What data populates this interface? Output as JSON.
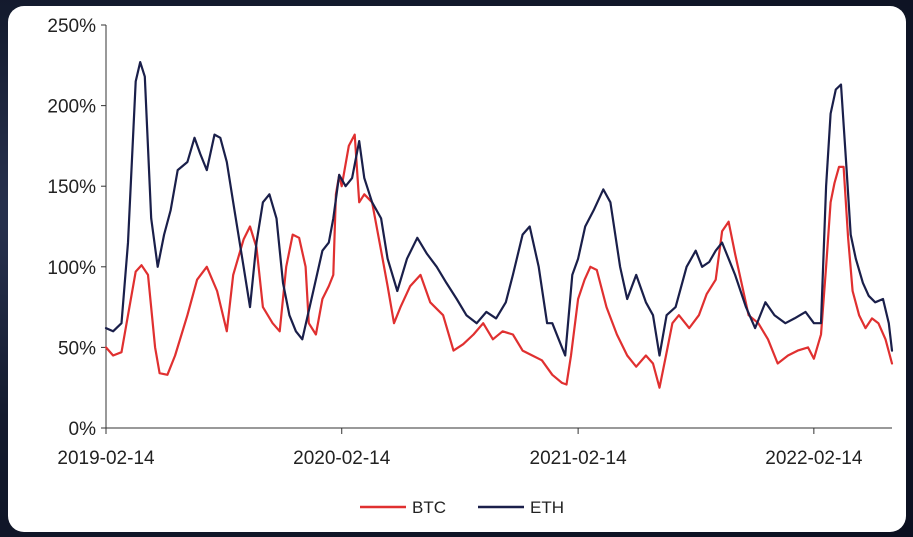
{
  "chart_data": {
    "type": "line",
    "title": "",
    "xlabel": "",
    "ylabel": "",
    "ylim": [
      0,
      250
    ],
    "y_ticks": [
      0,
      50,
      100,
      150,
      200,
      250
    ],
    "y_tick_labels": [
      "0%",
      "50%",
      "100%",
      "150%",
      "200%",
      "250%"
    ],
    "x_range": [
      "2019-02-14",
      "2022-06-15"
    ],
    "x_ticks": [
      "2019-02-14",
      "2020-02-14",
      "2021-02-14",
      "2022-02-14"
    ],
    "grid": false,
    "legend_position": "bottom",
    "series": [
      {
        "name": "BTC",
        "color": "#e03030",
        "points": [
          [
            "2019-02-14",
            50
          ],
          [
            "2019-02-25",
            45
          ],
          [
            "2019-03-10",
            47
          ],
          [
            "2019-03-20",
            70
          ],
          [
            "2019-04-01",
            97
          ],
          [
            "2019-04-10",
            101
          ],
          [
            "2019-04-20",
            95
          ],
          [
            "2019-05-01",
            50
          ],
          [
            "2019-05-08",
            34
          ],
          [
            "2019-05-20",
            33
          ],
          [
            "2019-06-01",
            45
          ],
          [
            "2019-06-20",
            70
          ],
          [
            "2019-07-05",
            92
          ],
          [
            "2019-07-20",
            100
          ],
          [
            "2019-08-05",
            85
          ],
          [
            "2019-08-20",
            60
          ],
          [
            "2019-08-30",
            95
          ],
          [
            "2019-09-15",
            117
          ],
          [
            "2019-09-25",
            125
          ],
          [
            "2019-10-05",
            112
          ],
          [
            "2019-10-15",
            75
          ],
          [
            "2019-10-30",
            65
          ],
          [
            "2019-11-10",
            60
          ],
          [
            "2019-11-20",
            100
          ],
          [
            "2019-11-30",
            120
          ],
          [
            "2019-12-10",
            118
          ],
          [
            "2019-12-20",
            100
          ],
          [
            "2019-12-25",
            65
          ],
          [
            "2020-01-05",
            58
          ],
          [
            "2020-01-15",
            80
          ],
          [
            "2020-01-25",
            88
          ],
          [
            "2020-02-01",
            95
          ],
          [
            "2020-02-05",
            145
          ],
          [
            "2020-02-10",
            157
          ],
          [
            "2020-02-14",
            150
          ],
          [
            "2020-02-25",
            175
          ],
          [
            "2020-03-05",
            182
          ],
          [
            "2020-03-12",
            140
          ],
          [
            "2020-03-20",
            145
          ],
          [
            "2020-04-01",
            140
          ],
          [
            "2020-04-15",
            110
          ],
          [
            "2020-04-25",
            88
          ],
          [
            "2020-05-05",
            65
          ],
          [
            "2020-05-15",
            75
          ],
          [
            "2020-05-30",
            88
          ],
          [
            "2020-06-15",
            95
          ],
          [
            "2020-06-30",
            78
          ],
          [
            "2020-07-20",
            70
          ],
          [
            "2020-08-05",
            48
          ],
          [
            "2020-08-20",
            52
          ],
          [
            "2020-09-05",
            58
          ],
          [
            "2020-09-20",
            65
          ],
          [
            "2020-10-05",
            55
          ],
          [
            "2020-10-20",
            60
          ],
          [
            "2020-11-05",
            58
          ],
          [
            "2020-11-20",
            48
          ],
          [
            "2020-12-05",
            45
          ],
          [
            "2020-12-20",
            42
          ],
          [
            "2021-01-05",
            33
          ],
          [
            "2021-01-20",
            28
          ],
          [
            "2021-01-27",
            27
          ],
          [
            "2021-02-03",
            45
          ],
          [
            "2021-02-14",
            80
          ],
          [
            "2021-02-24",
            92
          ],
          [
            "2021-03-05",
            100
          ],
          [
            "2021-03-15",
            98
          ],
          [
            "2021-03-30",
            75
          ],
          [
            "2021-04-15",
            58
          ],
          [
            "2021-05-01",
            45
          ],
          [
            "2021-05-15",
            38
          ],
          [
            "2021-05-30",
            45
          ],
          [
            "2021-06-10",
            40
          ],
          [
            "2021-06-20",
            25
          ],
          [
            "2021-06-30",
            45
          ],
          [
            "2021-07-10",
            65
          ],
          [
            "2021-07-20",
            70
          ],
          [
            "2021-08-05",
            62
          ],
          [
            "2021-08-20",
            70
          ],
          [
            "2021-09-01",
            83
          ],
          [
            "2021-09-15",
            92
          ],
          [
            "2021-09-25",
            122
          ],
          [
            "2021-10-05",
            128
          ],
          [
            "2021-10-15",
            108
          ],
          [
            "2021-10-25",
            90
          ],
          [
            "2021-11-05",
            70
          ],
          [
            "2021-11-20",
            65
          ],
          [
            "2021-12-05",
            55
          ],
          [
            "2021-12-20",
            40
          ],
          [
            "2022-01-05",
            45
          ],
          [
            "2022-01-20",
            48
          ],
          [
            "2022-02-05",
            50
          ],
          [
            "2022-02-14",
            43
          ],
          [
            "2022-02-25",
            58
          ],
          [
            "2022-03-05",
            100
          ],
          [
            "2022-03-12",
            140
          ],
          [
            "2022-03-18",
            152
          ],
          [
            "2022-03-25",
            162
          ],
          [
            "2022-04-01",
            162
          ],
          [
            "2022-04-08",
            118
          ],
          [
            "2022-04-15",
            85
          ],
          [
            "2022-04-25",
            70
          ],
          [
            "2022-05-05",
            62
          ],
          [
            "2022-05-15",
            68
          ],
          [
            "2022-05-25",
            65
          ],
          [
            "2022-06-05",
            55
          ],
          [
            "2022-06-15",
            40
          ]
        ]
      },
      {
        "name": "ETH",
        "color": "#1a1f4a",
        "points": [
          [
            "2019-02-14",
            62
          ],
          [
            "2019-02-25",
            60
          ],
          [
            "2019-03-10",
            65
          ],
          [
            "2019-03-20",
            115
          ],
          [
            "2019-04-01",
            215
          ],
          [
            "2019-04-08",
            227
          ],
          [
            "2019-04-15",
            218
          ],
          [
            "2019-04-25",
            130
          ],
          [
            "2019-05-05",
            100
          ],
          [
            "2019-05-15",
            120
          ],
          [
            "2019-05-25",
            135
          ],
          [
            "2019-06-05",
            160
          ],
          [
            "2019-06-20",
            165
          ],
          [
            "2019-07-01",
            180
          ],
          [
            "2019-07-10",
            170
          ],
          [
            "2019-07-20",
            160
          ],
          [
            "2019-08-01",
            182
          ],
          [
            "2019-08-10",
            180
          ],
          [
            "2019-08-20",
            165
          ],
          [
            "2019-09-01",
            135
          ],
          [
            "2019-09-15",
            100
          ],
          [
            "2019-09-25",
            75
          ],
          [
            "2019-10-05",
            115
          ],
          [
            "2019-10-15",
            140
          ],
          [
            "2019-10-25",
            145
          ],
          [
            "2019-11-05",
            130
          ],
          [
            "2019-11-15",
            90
          ],
          [
            "2019-11-25",
            70
          ],
          [
            "2019-12-05",
            60
          ],
          [
            "2019-12-15",
            55
          ],
          [
            "2020-01-01",
            85
          ],
          [
            "2020-01-15",
            110
          ],
          [
            "2020-01-25",
            115
          ],
          [
            "2020-02-01",
            130
          ],
          [
            "2020-02-10",
            157
          ],
          [
            "2020-02-20",
            150
          ],
          [
            "2020-03-01",
            155
          ],
          [
            "2020-03-12",
            178
          ],
          [
            "2020-03-20",
            155
          ],
          [
            "2020-04-01",
            140
          ],
          [
            "2020-04-15",
            130
          ],
          [
            "2020-04-25",
            105
          ],
          [
            "2020-05-10",
            85
          ],
          [
            "2020-05-25",
            105
          ],
          [
            "2020-06-10",
            118
          ],
          [
            "2020-06-25",
            108
          ],
          [
            "2020-07-10",
            100
          ],
          [
            "2020-07-25",
            90
          ],
          [
            "2020-08-10",
            80
          ],
          [
            "2020-08-25",
            70
          ],
          [
            "2020-09-10",
            65
          ],
          [
            "2020-09-25",
            72
          ],
          [
            "2020-10-10",
            68
          ],
          [
            "2020-10-25",
            78
          ],
          [
            "2020-11-05",
            95
          ],
          [
            "2020-11-20",
            120
          ],
          [
            "2020-12-01",
            125
          ],
          [
            "2020-12-15",
            100
          ],
          [
            "2020-12-28",
            65
          ],
          [
            "2021-01-05",
            65
          ],
          [
            "2021-01-15",
            55
          ],
          [
            "2021-01-25",
            45
          ],
          [
            "2021-02-05",
            95
          ],
          [
            "2021-02-14",
            105
          ],
          [
            "2021-02-25",
            125
          ],
          [
            "2021-03-10",
            135
          ],
          [
            "2021-03-25",
            148
          ],
          [
            "2021-04-05",
            140
          ],
          [
            "2021-04-20",
            100
          ],
          [
            "2021-05-01",
            80
          ],
          [
            "2021-05-15",
            95
          ],
          [
            "2021-05-30",
            78
          ],
          [
            "2021-06-10",
            70
          ],
          [
            "2021-06-20",
            45
          ],
          [
            "2021-07-01",
            70
          ],
          [
            "2021-07-15",
            75
          ],
          [
            "2021-08-01",
            100
          ],
          [
            "2021-08-15",
            110
          ],
          [
            "2021-08-25",
            100
          ],
          [
            "2021-09-05",
            103
          ],
          [
            "2021-09-15",
            110
          ],
          [
            "2021-09-25",
            115
          ],
          [
            "2021-10-05",
            105
          ],
          [
            "2021-10-15",
            95
          ],
          [
            "2021-11-01",
            75
          ],
          [
            "2021-11-15",
            62
          ],
          [
            "2021-12-01",
            78
          ],
          [
            "2021-12-15",
            70
          ],
          [
            "2022-01-01",
            65
          ],
          [
            "2022-01-15",
            68
          ],
          [
            "2022-02-01",
            72
          ],
          [
            "2022-02-14",
            65
          ],
          [
            "2022-02-25",
            65
          ],
          [
            "2022-03-05",
            150
          ],
          [
            "2022-03-12",
            195
          ],
          [
            "2022-03-20",
            210
          ],
          [
            "2022-03-28",
            213
          ],
          [
            "2022-04-05",
            165
          ],
          [
            "2022-04-12",
            120
          ],
          [
            "2022-04-20",
            105
          ],
          [
            "2022-05-01",
            90
          ],
          [
            "2022-05-10",
            82
          ],
          [
            "2022-05-20",
            78
          ],
          [
            "2022-06-01",
            80
          ],
          [
            "2022-06-10",
            65
          ],
          [
            "2022-06-15",
            48
          ]
        ]
      }
    ]
  }
}
